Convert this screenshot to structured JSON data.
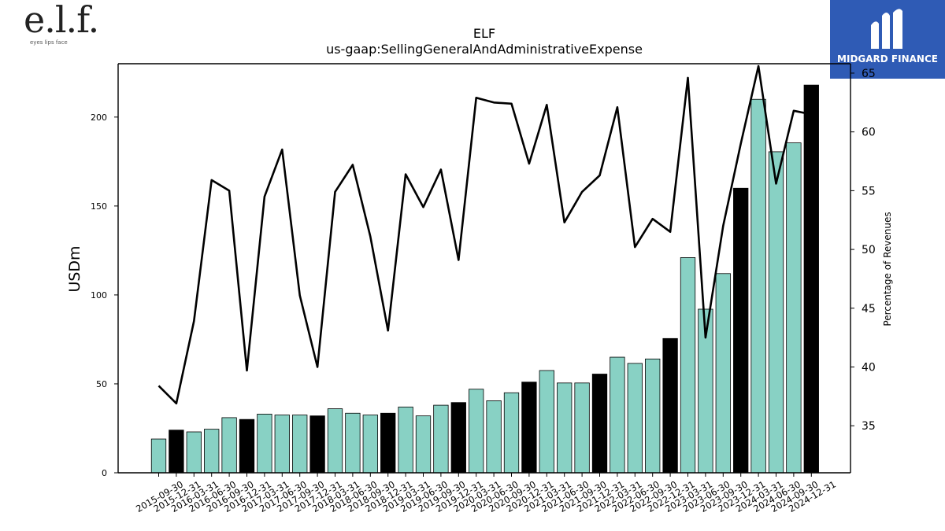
{
  "logos": {
    "elf_mark": "e.l.f.",
    "elf_tagline": "eyes lips face",
    "midgard_name": "MIDGARD FINANCE"
  },
  "colors": {
    "bar_teal": "#88d1c4",
    "bar_black": "#000000",
    "line": "#000000",
    "midgard_blue": "#2f5bb5"
  },
  "chart_data": {
    "type": "bar",
    "title": "ELF",
    "subtitle": "us-gaap:SellingGeneralAndAdministrativeExpense",
    "ylabel": "USDm",
    "y2label": "Percentage of Revenues",
    "ylim": [
      0,
      230
    ],
    "y2lim": [
      31,
      65.8
    ],
    "yticks": [
      0,
      50,
      100,
      150,
      200
    ],
    "y2ticks": [
      35,
      40,
      45,
      50,
      55,
      60,
      65
    ],
    "categories": [
      "2015-09-30",
      "2015-12-31",
      "2016-03-31",
      "2016-06-30",
      "2016-09-30",
      "2016-12-31",
      "2017-03-31",
      "2017-06-30",
      "2017-09-30",
      "2017-12-31",
      "2018-03-31",
      "2018-06-30",
      "2018-09-30",
      "2018-12-31",
      "2019-03-31",
      "2019-06-30",
      "2019-09-30",
      "2019-12-31",
      "2020-03-31",
      "2020-06-30",
      "2020-09-30",
      "2020-12-31",
      "2021-03-31",
      "2021-06-30",
      "2021-09-30",
      "2021-12-31",
      "2022-03-31",
      "2022-06-30",
      "2022-09-30",
      "2022-12-31",
      "2023-03-31",
      "2023-06-30",
      "2023-09-30",
      "2023-12-31",
      "2024-03-31",
      "2024-06-30",
      "2024-09-30",
      "2024-12-31"
    ],
    "series": [
      {
        "kind": "bar",
        "values": [
          19,
          24,
          23,
          24.5,
          31,
          30,
          33,
          32.5,
          32.5,
          32,
          36,
          33.5,
          32.5,
          33.5,
          37,
          32,
          38,
          39.5,
          47,
          40.5,
          45,
          51,
          57.5,
          50.5,
          50.5,
          55.5,
          65,
          61.5,
          64,
          75.5,
          121,
          92,
          112,
          160,
          210,
          180.5,
          185.5,
          218
        ],
        "highlight": [
          false,
          true,
          false,
          false,
          false,
          true,
          false,
          false,
          false,
          true,
          false,
          false,
          false,
          true,
          false,
          false,
          false,
          true,
          false,
          false,
          false,
          true,
          false,
          false,
          false,
          true,
          false,
          false,
          false,
          true,
          false,
          false,
          false,
          true,
          false,
          false,
          false,
          true
        ]
      },
      {
        "kind": "line",
        "axis": "right",
        "values": [
          38.4,
          36.9,
          43.9,
          55.9,
          55.0,
          39.7,
          54.5,
          58.5,
          46.1,
          40.0,
          54.9,
          57.2,
          51.1,
          43.1,
          56.4,
          53.6,
          56.8,
          49.1,
          62.9,
          62.5,
          62.4,
          57.3,
          62.3,
          52.3,
          54.9,
          56.3,
          62.1,
          50.2,
          52.6,
          51.5,
          64.6,
          42.5,
          52.0,
          59.0,
          65.6,
          55.6,
          61.8,
          61.5
        ]
      }
    ],
    "grid": false
  }
}
